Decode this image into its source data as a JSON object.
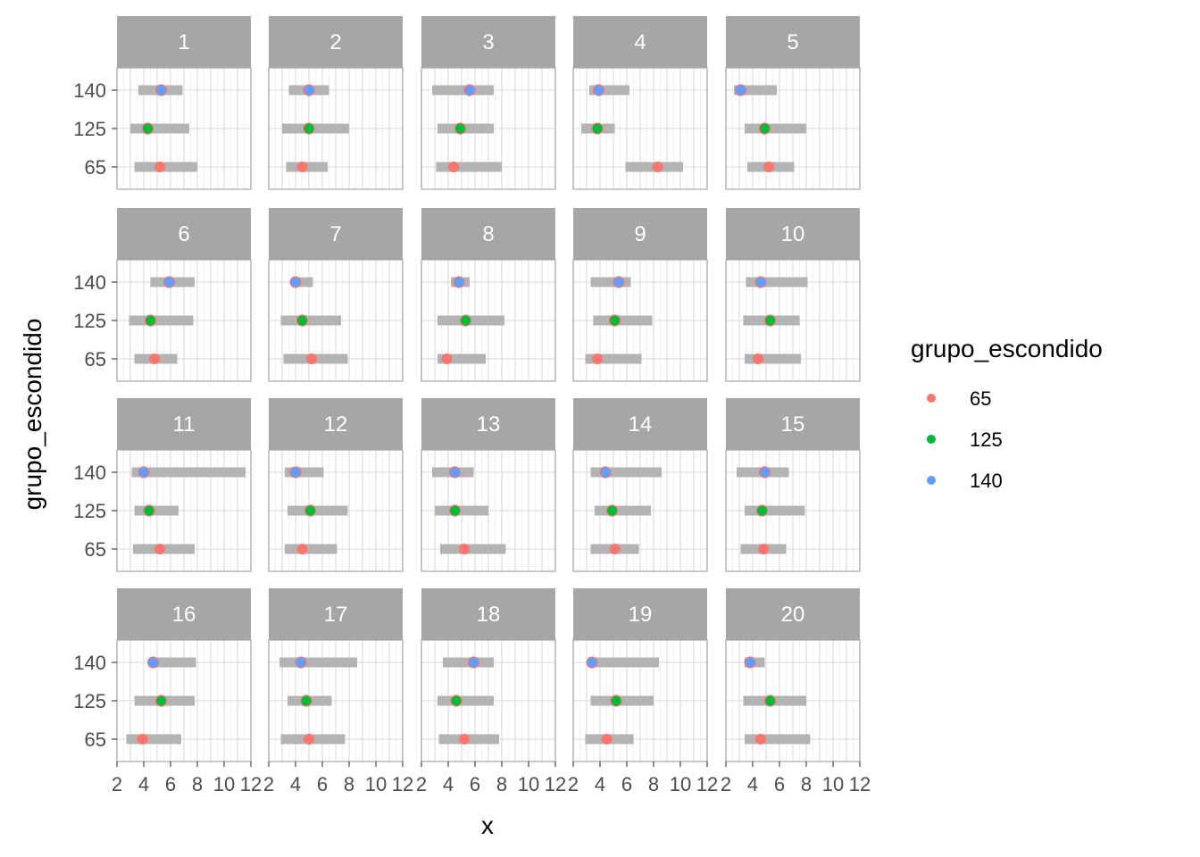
{
  "chart_data": {
    "type": "scatter",
    "facet_labels": [
      "1",
      "2",
      "3",
      "4",
      "5",
      "6",
      "7",
      "8",
      "9",
      "10",
      "11",
      "12",
      "13",
      "14",
      "15",
      "16",
      "17",
      "18",
      "19",
      "20"
    ],
    "xlabel": "x",
    "ylabel": "grupo_escondido",
    "x_ticks": [
      "2",
      "4",
      "6",
      "8",
      "10",
      "12"
    ],
    "xlim": [
      2,
      12
    ],
    "y_categories": [
      "65",
      "125",
      "140"
    ],
    "grid": true,
    "legend": {
      "title": "grupo_escondido",
      "position": "right",
      "entries": [
        {
          "label": "65",
          "color": "#F8766D"
        },
        {
          "label": "125",
          "color": "#00BA38"
        },
        {
          "label": "140",
          "color": "#619CFF"
        }
      ]
    },
    "range_bar_color": "#B3B3B3",
    "panels": [
      {
        "facet": "1",
        "rows": [
          {
            "group": "140",
            "point": 5.3,
            "lo": 3.6,
            "hi": 6.9
          },
          {
            "group": "125",
            "point": 4.3,
            "lo": 3.0,
            "hi": 7.4
          },
          {
            "group": "65",
            "point": 5.2,
            "lo": 3.3,
            "hi": 8.0
          }
        ]
      },
      {
        "facet": "2",
        "rows": [
          {
            "group": "140",
            "point": 5.0,
            "lo": 3.5,
            "hi": 6.5
          },
          {
            "group": "125",
            "point": 5.0,
            "lo": 3.0,
            "hi": 8.0
          },
          {
            "group": "65",
            "point": 4.5,
            "lo": 3.3,
            "hi": 6.4
          }
        ]
      },
      {
        "facet": "3",
        "rows": [
          {
            "group": "140",
            "point": 5.6,
            "lo": 2.8,
            "hi": 7.4
          },
          {
            "group": "125",
            "point": 4.9,
            "lo": 3.2,
            "hi": 7.4
          },
          {
            "group": "65",
            "point": 4.4,
            "lo": 3.1,
            "hi": 8.0
          }
        ]
      },
      {
        "facet": "4",
        "rows": [
          {
            "group": "140",
            "point": 3.9,
            "lo": 3.2,
            "hi": 6.2
          },
          {
            "group": "125",
            "point": 3.8,
            "lo": 2.6,
            "hi": 5.1
          },
          {
            "group": "65",
            "point": 8.3,
            "lo": 5.9,
            "hi": 10.2
          }
        ]
      },
      {
        "facet": "5",
        "rows": [
          {
            "group": "140",
            "point": 3.1,
            "lo": 2.6,
            "hi": 5.8
          },
          {
            "group": "125",
            "point": 4.9,
            "lo": 3.4,
            "hi": 8.0
          },
          {
            "group": "65",
            "point": 5.2,
            "lo": 3.6,
            "hi": 7.1
          }
        ]
      },
      {
        "facet": "6",
        "rows": [
          {
            "group": "140",
            "point": 5.9,
            "lo": 4.5,
            "hi": 7.8
          },
          {
            "group": "125",
            "point": 4.5,
            "lo": 2.9,
            "hi": 7.7
          },
          {
            "group": "65",
            "point": 4.8,
            "lo": 3.3,
            "hi": 6.5
          }
        ]
      },
      {
        "facet": "7",
        "rows": [
          {
            "group": "140",
            "point": 4.0,
            "lo": 3.7,
            "hi": 5.3
          },
          {
            "group": "125",
            "point": 4.5,
            "lo": 2.9,
            "hi": 7.4
          },
          {
            "group": "65",
            "point": 5.2,
            "lo": 3.1,
            "hi": 7.9
          }
        ]
      },
      {
        "facet": "8",
        "rows": [
          {
            "group": "140",
            "point": 4.8,
            "lo": 4.2,
            "hi": 5.6
          },
          {
            "group": "125",
            "point": 5.3,
            "lo": 3.2,
            "hi": 8.2
          },
          {
            "group": "65",
            "point": 3.9,
            "lo": 3.2,
            "hi": 6.8
          }
        ]
      },
      {
        "facet": "9",
        "rows": [
          {
            "group": "140",
            "point": 5.4,
            "lo": 3.3,
            "hi": 6.3
          },
          {
            "group": "125",
            "point": 5.1,
            "lo": 3.5,
            "hi": 7.9
          },
          {
            "group": "65",
            "point": 3.8,
            "lo": 2.9,
            "hi": 7.1
          }
        ]
      },
      {
        "facet": "10",
        "rows": [
          {
            "group": "140",
            "point": 4.6,
            "lo": 3.5,
            "hi": 8.1
          },
          {
            "group": "125",
            "point": 5.3,
            "lo": 3.3,
            "hi": 7.5
          },
          {
            "group": "65",
            "point": 4.4,
            "lo": 3.4,
            "hi": 7.6
          }
        ]
      },
      {
        "facet": "11",
        "rows": [
          {
            "group": "140",
            "point": 4.0,
            "lo": 3.1,
            "hi": 11.6
          },
          {
            "group": "125",
            "point": 4.4,
            "lo": 3.3,
            "hi": 6.6
          },
          {
            "group": "65",
            "point": 5.2,
            "lo": 3.2,
            "hi": 7.8
          }
        ]
      },
      {
        "facet": "12",
        "rows": [
          {
            "group": "140",
            "point": 4.0,
            "lo": 3.2,
            "hi": 6.1
          },
          {
            "group": "125",
            "point": 5.1,
            "lo": 3.4,
            "hi": 7.9
          },
          {
            "group": "65",
            "point": 4.5,
            "lo": 3.2,
            "hi": 7.1
          }
        ]
      },
      {
        "facet": "13",
        "rows": [
          {
            "group": "140",
            "point": 4.5,
            "lo": 2.8,
            "hi": 5.9
          },
          {
            "group": "125",
            "point": 4.5,
            "lo": 3.0,
            "hi": 7.0
          },
          {
            "group": "65",
            "point": 5.2,
            "lo": 3.4,
            "hi": 8.3
          }
        ]
      },
      {
        "facet": "14",
        "rows": [
          {
            "group": "140",
            "point": 4.4,
            "lo": 3.3,
            "hi": 8.6
          },
          {
            "group": "125",
            "point": 4.9,
            "lo": 3.6,
            "hi": 7.8
          },
          {
            "group": "65",
            "point": 5.1,
            "lo": 3.3,
            "hi": 6.9
          }
        ]
      },
      {
        "facet": "15",
        "rows": [
          {
            "group": "140",
            "point": 4.9,
            "lo": 2.8,
            "hi": 6.7
          },
          {
            "group": "125",
            "point": 4.7,
            "lo": 3.4,
            "hi": 7.9
          },
          {
            "group": "65",
            "point": 4.8,
            "lo": 3.1,
            "hi": 6.5
          }
        ]
      },
      {
        "facet": "16",
        "rows": [
          {
            "group": "140",
            "point": 4.7,
            "lo": 4.4,
            "hi": 7.9
          },
          {
            "group": "125",
            "point": 5.3,
            "lo": 3.3,
            "hi": 7.8
          },
          {
            "group": "65",
            "point": 3.9,
            "lo": 2.7,
            "hi": 6.8
          }
        ]
      },
      {
        "facet": "17",
        "rows": [
          {
            "group": "140",
            "point": 4.4,
            "lo": 2.8,
            "hi": 8.6
          },
          {
            "group": "125",
            "point": 4.8,
            "lo": 3.4,
            "hi": 6.7
          },
          {
            "group": "65",
            "point": 5.0,
            "lo": 2.9,
            "hi": 7.7
          }
        ]
      },
      {
        "facet": "18",
        "rows": [
          {
            "group": "140",
            "point": 5.9,
            "lo": 3.6,
            "hi": 7.4
          },
          {
            "group": "125",
            "point": 4.6,
            "lo": 3.2,
            "hi": 7.4
          },
          {
            "group": "65",
            "point": 5.2,
            "lo": 3.3,
            "hi": 7.8
          }
        ]
      },
      {
        "facet": "19",
        "rows": [
          {
            "group": "140",
            "point": 3.4,
            "lo": 3.2,
            "hi": 8.4
          },
          {
            "group": "125",
            "point": 5.2,
            "lo": 3.3,
            "hi": 8.0
          },
          {
            "group": "65",
            "point": 4.5,
            "lo": 2.9,
            "hi": 6.5
          }
        ]
      },
      {
        "facet": "20",
        "rows": [
          {
            "group": "140",
            "point": 3.8,
            "lo": 3.4,
            "hi": 4.9
          },
          {
            "group": "125",
            "point": 5.3,
            "lo": 3.3,
            "hi": 8.0
          },
          {
            "group": "65",
            "point": 4.6,
            "lo": 3.4,
            "hi": 8.3
          }
        ]
      }
    ]
  }
}
